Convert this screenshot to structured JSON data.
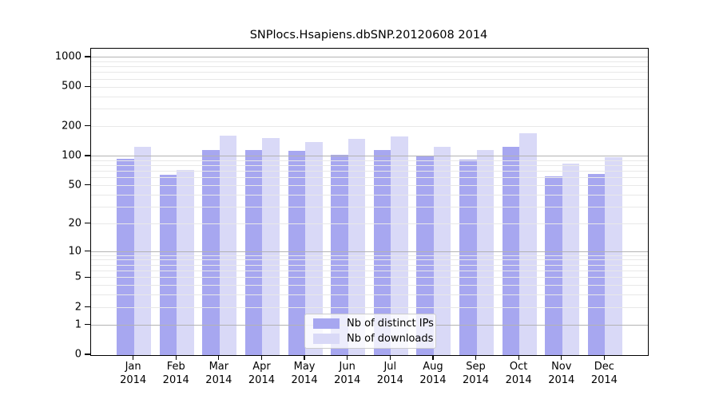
{
  "chart_data": {
    "type": "bar",
    "title": "SNPlocs.Hsapiens.dbSNP.20120608 2014",
    "x_tick_months": [
      "Jan",
      "Feb",
      "Mar",
      "Apr",
      "May",
      "Jun",
      "Jul",
      "Aug",
      "Sep",
      "Oct",
      "Nov",
      "Dec"
    ],
    "x_tick_year": "2014",
    "series": [
      {
        "name": "Nb of distinct IPs",
        "color": "#a7a7f0",
        "values": [
          95,
          65,
          115,
          115,
          113,
          104,
          116,
          101,
          93,
          124,
          62,
          66
        ]
      },
      {
        "name": "Nb of downloads",
        "color": "#d9d9f7",
        "values": [
          125,
          73,
          161,
          154,
          139,
          150,
          160,
          124,
          116,
          171,
          84,
          98
        ]
      }
    ],
    "y_axis": {
      "scale": "log10(value+1)",
      "tick_labels": [
        "0",
        "1",
        "2",
        "5",
        "10",
        "20",
        "50",
        "100",
        "200",
        "500",
        "1000"
      ],
      "tick_values": [
        0,
        1,
        2,
        5,
        10,
        20,
        50,
        100,
        200,
        500,
        1000
      ],
      "range_top_log": 3.09
    },
    "grid": {
      "major_values": [
        1,
        10,
        100,
        1000
      ],
      "minor_values": [
        2,
        3,
        4,
        5,
        6,
        7,
        8,
        9,
        20,
        30,
        40,
        50,
        60,
        70,
        80,
        90,
        200,
        300,
        400,
        500,
        600,
        700,
        800,
        900
      ],
      "major_color": "#b3b3b3",
      "minor_color": "#e8e8e8",
      "grid_on_top_of_bars": true
    },
    "legend_position": "lower center",
    "axis_color": "#000000",
    "background_color": "#ffffff"
  }
}
